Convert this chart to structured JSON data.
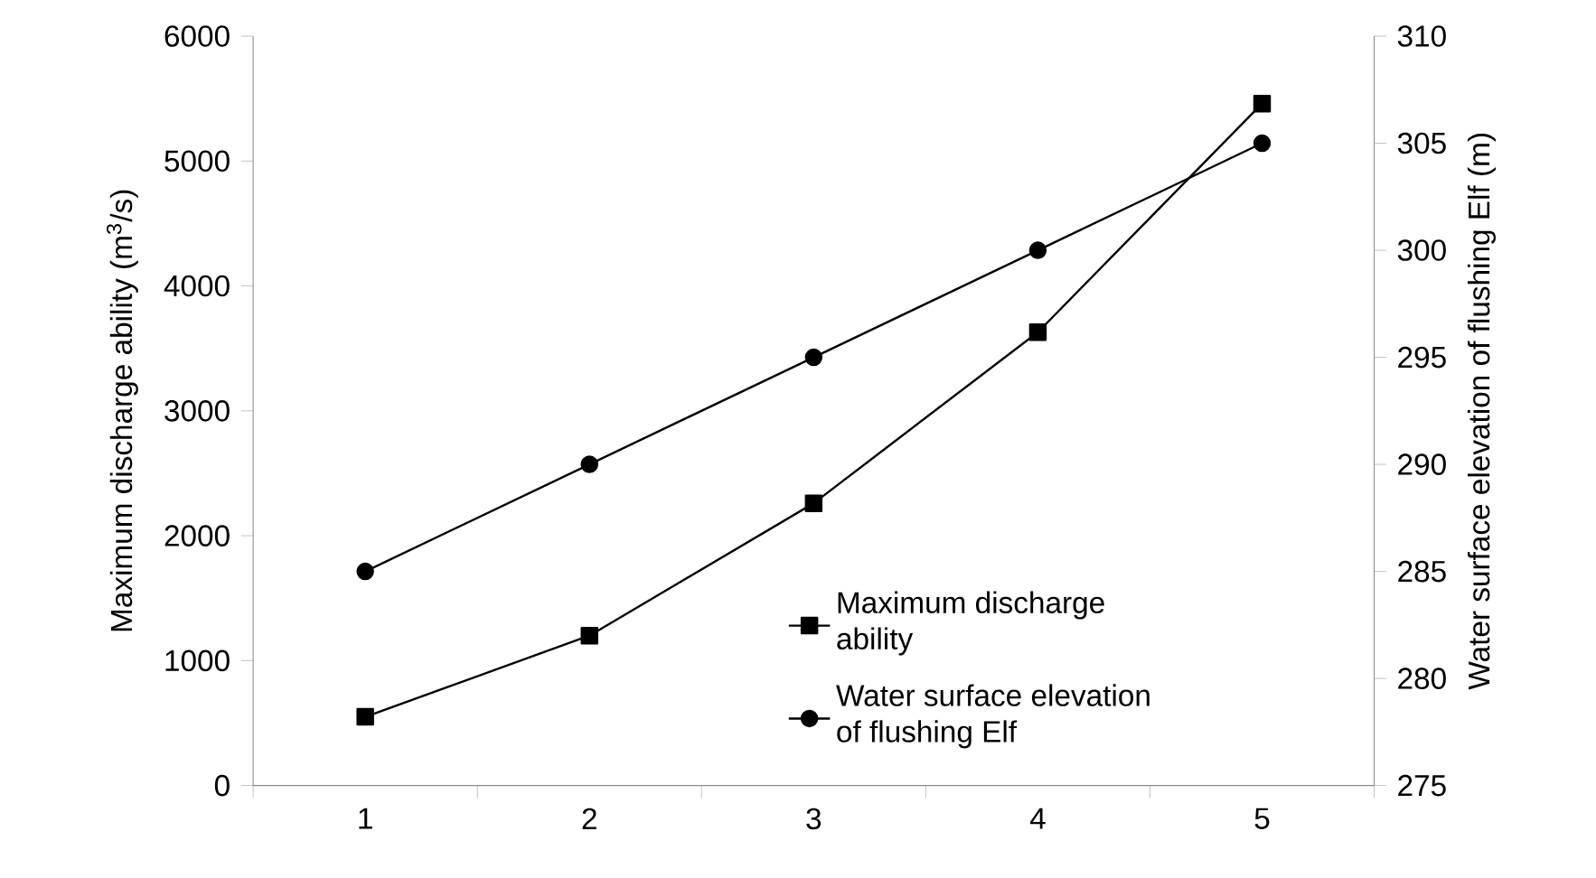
{
  "chart_data": {
    "type": "line",
    "ylabel": "Maximum discharge ability (m$^{3}$/s)",
    "y2label": "Water surface elevation  of flushing Elf (m)",
    "categories": [
      "1",
      "2",
      "3",
      "4",
      "5"
    ],
    "series": [
      {
        "name": "Maximum discharge ability",
        "color": "#000000",
        "marker": "square",
        "values": [
          550,
          1200,
          2260,
          3630,
          5460
        ]
      },
      {
        "name": "Water surface elevation of flushing Elf",
        "color": "#000000",
        "marker": "circle",
        "axis": "y2",
        "values": [
          285,
          290,
          295,
          300,
          305
        ]
      }
    ],
    "ylim": [
      0,
      6000
    ],
    "yticks": [
      0,
      1000,
      2000,
      3000,
      4000,
      5000,
      6000
    ],
    "y2lim": [
      275,
      310
    ],
    "y2ticks": [
      275,
      280,
      285,
      290,
      295,
      300,
      305,
      310
    ],
    "legend": "bottom right",
    "line_style": "solid"
  }
}
